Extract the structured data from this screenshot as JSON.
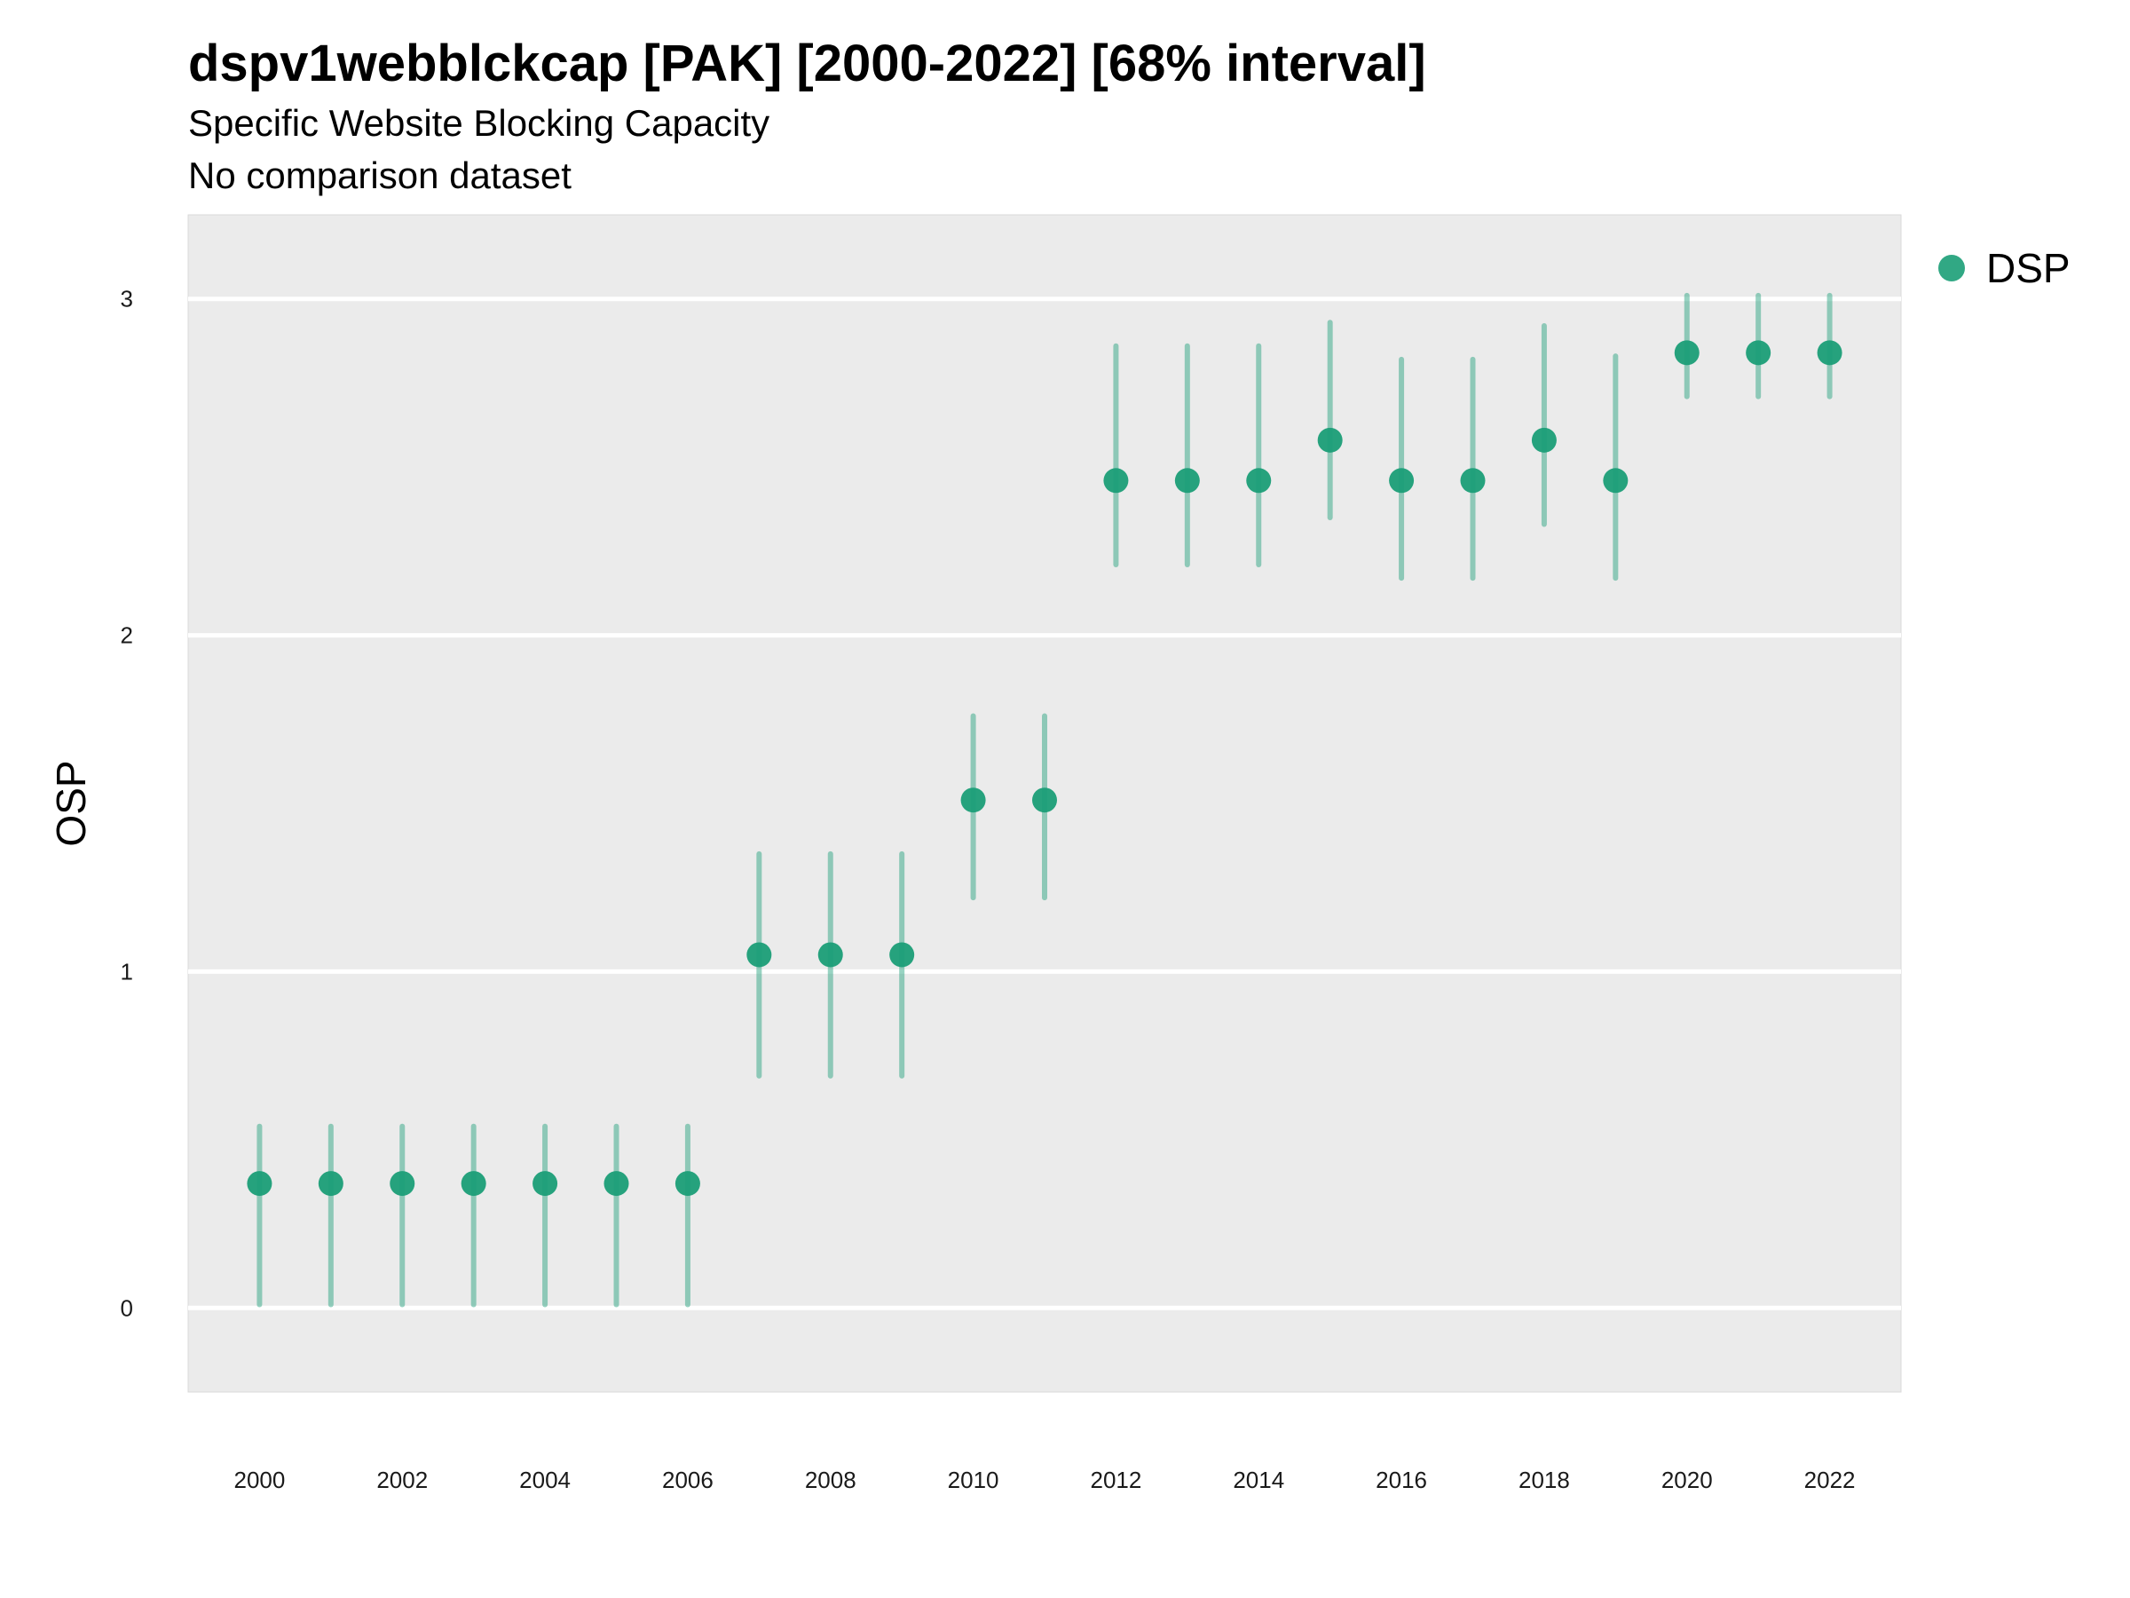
{
  "chart_data": {
    "type": "scatter",
    "title": "dspv1webblckcap [PAK] [2000-2022] [68% interval]",
    "subtitle": "Specific Website Blocking Capacity",
    "subtitle2": "No comparison dataset",
    "xlabel": "",
    "ylabel": "OSP",
    "xlim": [
      1999.0,
      2023.0
    ],
    "ylim": [
      -0.25,
      3.25
    ],
    "x_ticks": [
      2000,
      2002,
      2004,
      2006,
      2008,
      2010,
      2012,
      2014,
      2016,
      2018,
      2020,
      2022
    ],
    "y_ticks": [
      0,
      1,
      2,
      3
    ],
    "grid": true,
    "legend_position": "right",
    "series": [
      {
        "name": "DSP",
        "color": "#1b9e77",
        "x": [
          2000,
          2001,
          2002,
          2003,
          2004,
          2005,
          2006,
          2007,
          2008,
          2009,
          2010,
          2011,
          2012,
          2013,
          2014,
          2015,
          2016,
          2017,
          2018,
          2019,
          2020,
          2021,
          2022
        ],
        "y": [
          0.37,
          0.37,
          0.37,
          0.37,
          0.37,
          0.37,
          0.37,
          1.05,
          1.05,
          1.05,
          1.51,
          1.51,
          2.46,
          2.46,
          2.46,
          2.58,
          2.46,
          2.46,
          2.58,
          2.46,
          2.84,
          2.84,
          2.84
        ],
        "lower": [
          0.01,
          0.01,
          0.01,
          0.01,
          0.01,
          0.01,
          0.01,
          0.69,
          0.69,
          0.69,
          1.22,
          1.22,
          2.21,
          2.21,
          2.21,
          2.35,
          2.17,
          2.17,
          2.33,
          2.17,
          2.71,
          2.71,
          2.71
        ],
        "upper": [
          0.54,
          0.54,
          0.54,
          0.54,
          0.54,
          0.54,
          0.54,
          1.35,
          1.35,
          1.35,
          1.76,
          1.76,
          2.86,
          2.86,
          2.86,
          2.93,
          2.82,
          2.82,
          2.92,
          2.83,
          3.01,
          3.01,
          3.01
        ]
      }
    ]
  }
}
